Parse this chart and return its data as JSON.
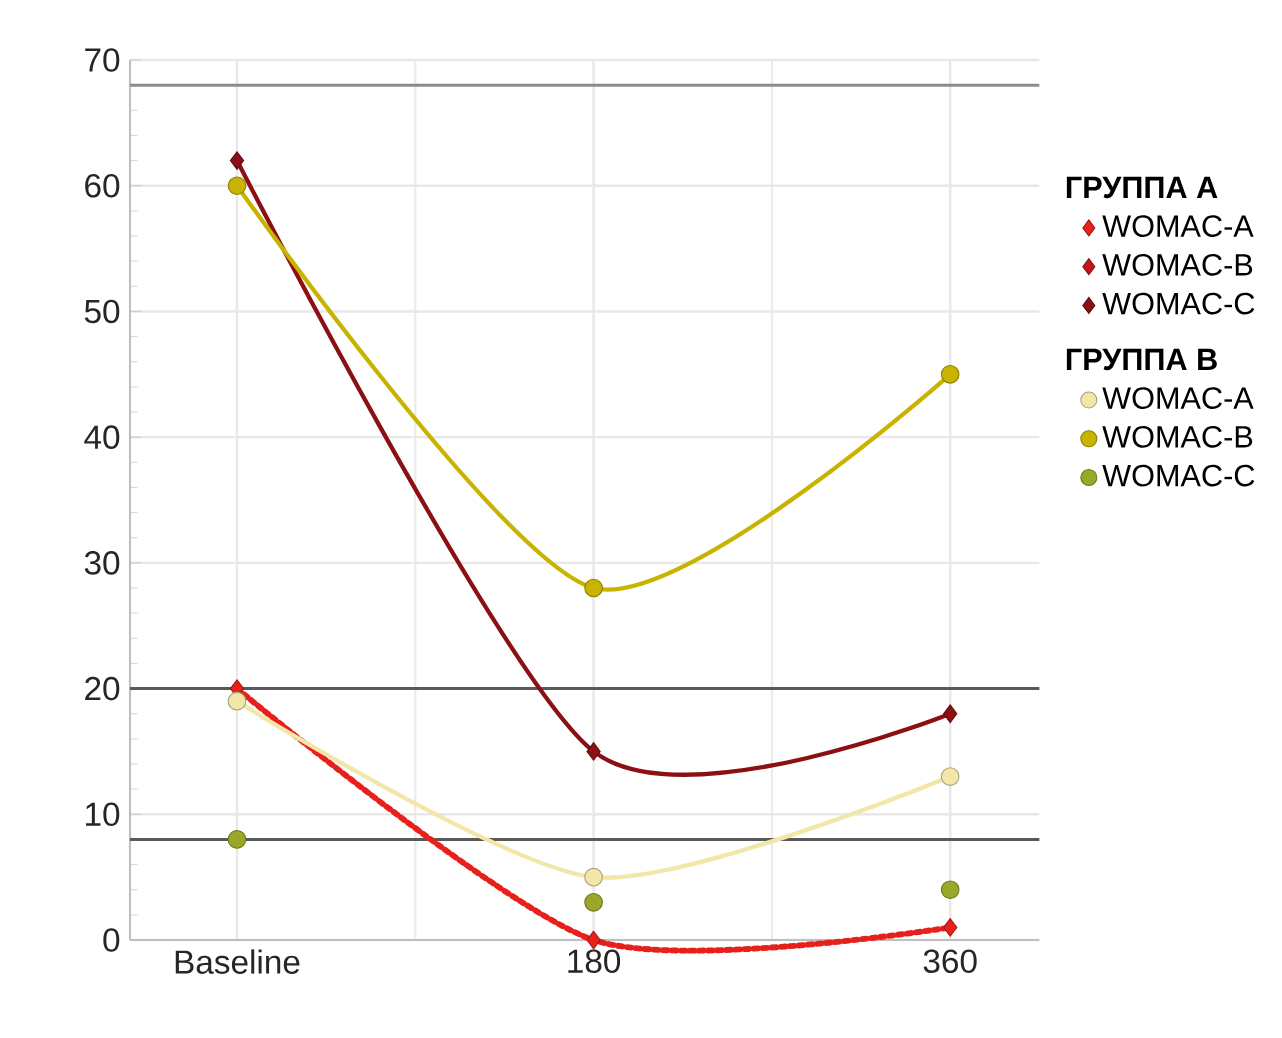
{
  "chart_data": {
    "type": "line",
    "categories": [
      "Baseline",
      "180",
      "360"
    ],
    "legend_title": "ГРУППА А",
    "annotations": [
      "ГРУППА В"
    ],
    "series": [
      {
        "name": "WOMAC-A",
        "color": "#e8201c",
        "marker": "diamond",
        "line_style": "dotted",
        "values": [
          20,
          0,
          1
        ]
      },
      {
        "name": "WOMAC-B",
        "type": "scatter",
        "color": "#c8141c",
        "marker": "diamond",
        "values": [
          null,
          null,
          null
        ]
      },
      {
        "name": "WOMAC-C",
        "color": "#8b1014",
        "marker": "diamond",
        "line_style": "solid",
        "values": [
          62,
          15,
          18
        ]
      },
      {
        "name": "WOMAC-A",
        "color": "#f2e6a8",
        "marker": "circle",
        "line_style": "solid",
        "values": [
          19,
          5,
          13
        ]
      },
      {
        "name": "WOMAC-B",
        "color": "#c8b400",
        "marker": "circle",
        "line_style": "solid",
        "values": [
          60,
          28,
          45
        ]
      },
      {
        "name": "WOMAC-C",
        "type": "scatter",
        "color": "#9aa82a",
        "marker": "circle",
        "values": [
          8,
          3,
          4
        ]
      }
    ],
    "ylim": [
      0,
      70
    ],
    "yticks": [
      0,
      10,
      20,
      30,
      40,
      50,
      60,
      70
    ],
    "grid": true,
    "legend": "right",
    "ref_lines": [
      {
        "axis": "y",
        "value": 68,
        "color": "#8c8c8c"
      },
      {
        "axis": "y",
        "value": 20,
        "color": "#595959"
      },
      {
        "axis": "y",
        "value": 8,
        "color": "#595959"
      }
    ]
  }
}
